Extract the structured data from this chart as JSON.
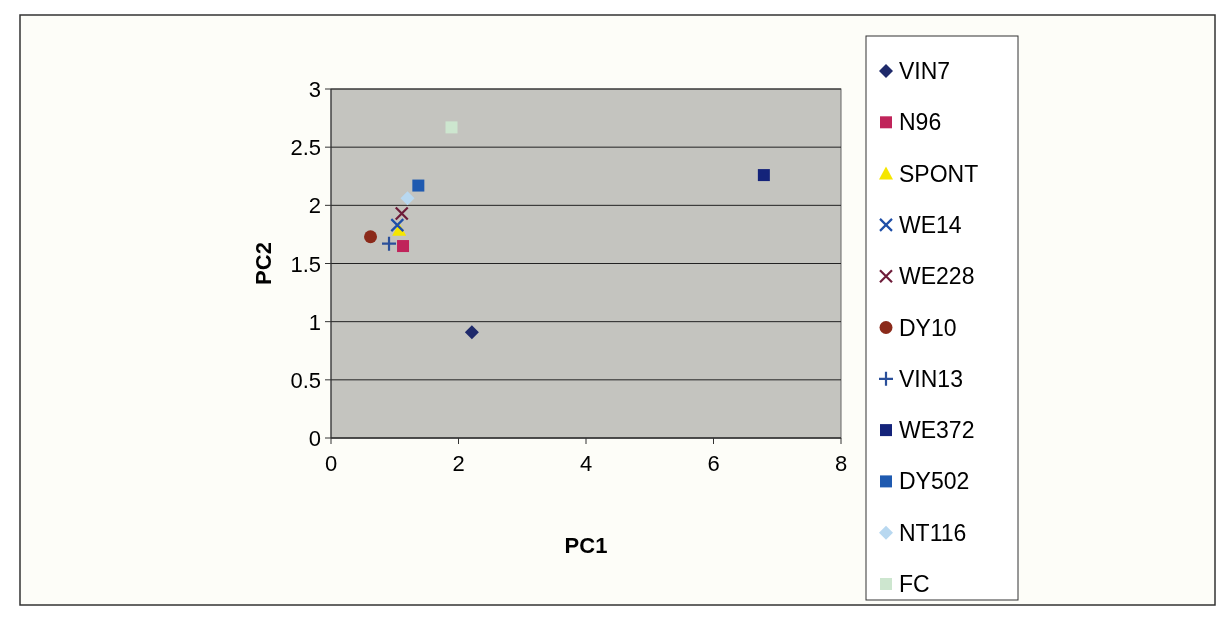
{
  "chart_data": {
    "type": "scatter",
    "xlabel": "PC1",
    "ylabel": "PC2",
    "xlim": [
      0,
      8
    ],
    "xticks": [
      0,
      2,
      4,
      6,
      8
    ],
    "ylim": [
      0,
      3
    ],
    "yticks": [
      0,
      0.5,
      1,
      1.5,
      2,
      2.5,
      3
    ],
    "grid": "y",
    "legend": "right",
    "series": [
      {
        "name": "VIN7",
        "color": "#1f2a6b",
        "marker": "diamond",
        "x": [
          2.21
        ],
        "values": [
          0.91
        ]
      },
      {
        "name": "N96",
        "color": "#c0245a",
        "marker": "square",
        "x": [
          1.13
        ],
        "values": [
          1.65
        ]
      },
      {
        "name": "SPONT",
        "color": "#f5e600",
        "marker": "triangle",
        "x": [
          1.07
        ],
        "values": [
          1.79
        ]
      },
      {
        "name": "WE14",
        "color": "#1f4fa8",
        "marker": "cross",
        "x": [
          1.04
        ],
        "values": [
          1.83
        ]
      },
      {
        "name": "WE228",
        "color": "#6e1d3a",
        "marker": "cross",
        "x": [
          1.11
        ],
        "values": [
          1.93
        ]
      },
      {
        "name": "DY10",
        "color": "#8b2a1a",
        "marker": "circle",
        "x": [
          0.62
        ],
        "values": [
          1.73
        ]
      },
      {
        "name": "VIN13",
        "color": "#2a4f9a",
        "marker": "plus",
        "x": [
          0.91
        ],
        "values": [
          1.67
        ]
      },
      {
        "name": "WE372",
        "color": "#14237a",
        "marker": "square",
        "x": [
          6.79
        ],
        "values": [
          2.26
        ]
      },
      {
        "name": "DY502",
        "color": "#1f5ab0",
        "marker": "square",
        "x": [
          1.37
        ],
        "values": [
          2.17
        ]
      },
      {
        "name": "NT116",
        "color": "#b8d8f0",
        "marker": "diamond",
        "x": [
          1.2
        ],
        "values": [
          2.06
        ]
      },
      {
        "name": "FC",
        "color": "#cde6cf",
        "marker": "square",
        "x": [
          1.89
        ],
        "values": [
          2.67
        ]
      }
    ]
  }
}
